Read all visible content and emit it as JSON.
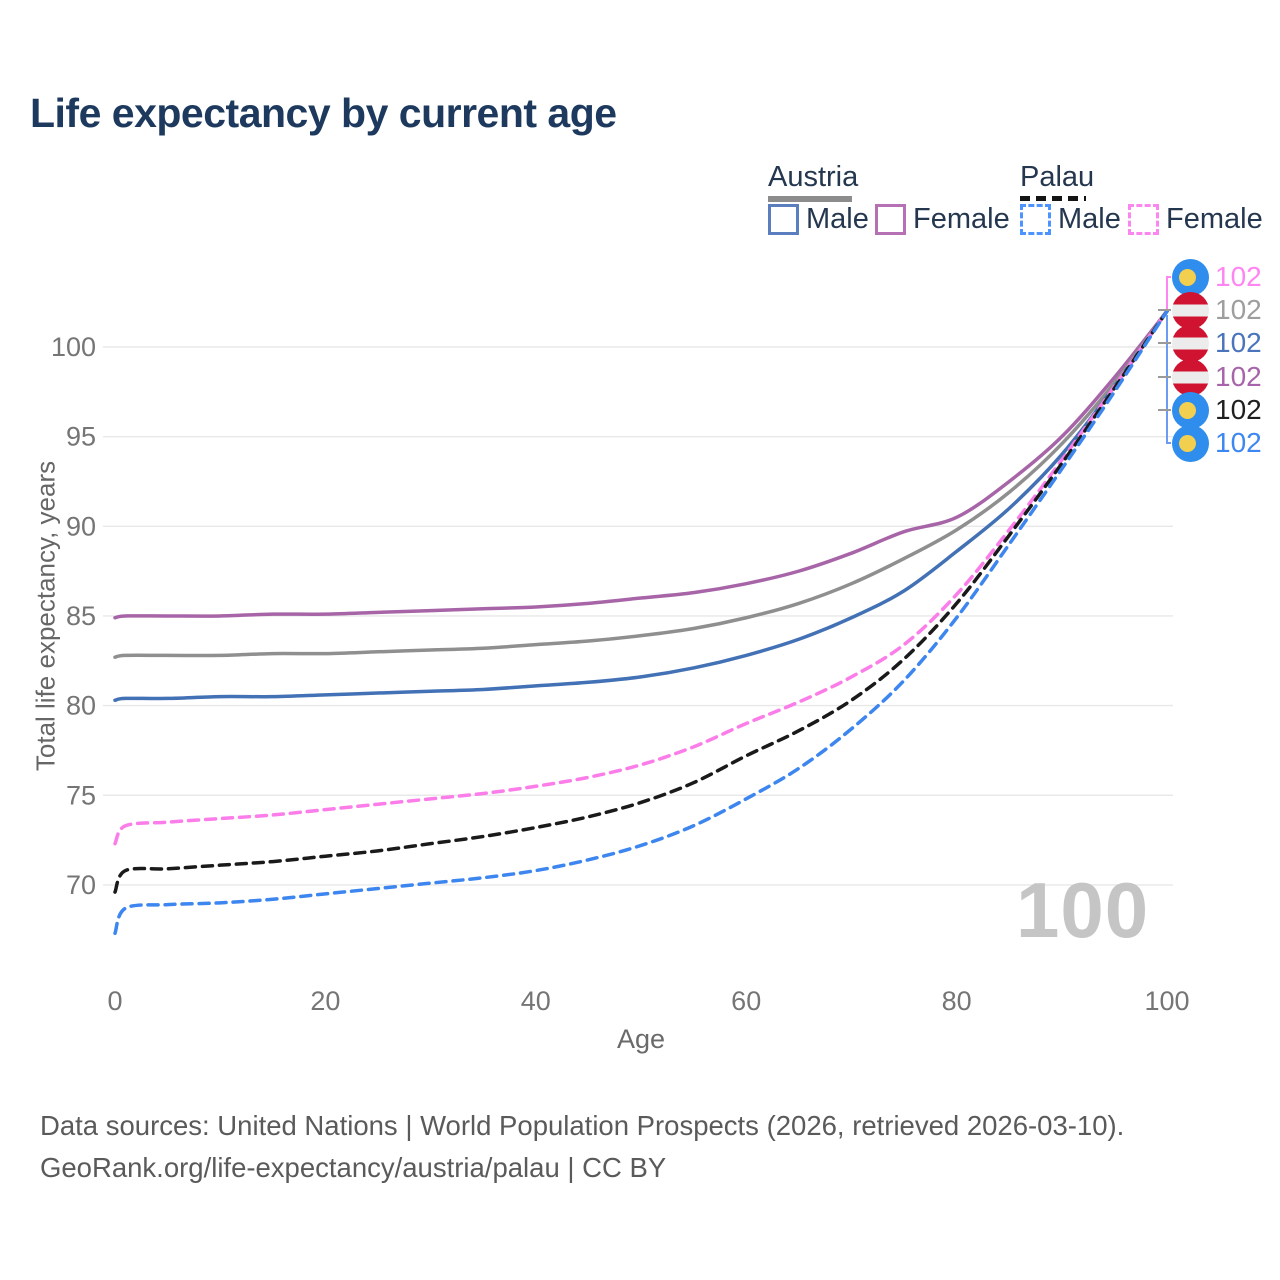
{
  "title": "Life expectancy by current age",
  "legend": {
    "groups": [
      {
        "label": "Austria",
        "line_style": "solid",
        "underline_color": "#8c8c8c",
        "items": [
          {
            "label": "Male",
            "color": "#5b7fbe"
          },
          {
            "label": "Female",
            "color": "#b671b4"
          }
        ]
      },
      {
        "label": "Palau",
        "line_style": "dashed",
        "underline_color": "#141414",
        "items": [
          {
            "label": "Male",
            "color": "#4d94ff"
          },
          {
            "label": "Female",
            "color": "#fc86f0"
          }
        ]
      }
    ]
  },
  "chart_data": {
    "type": "line",
    "title": "Life expectancy by current age",
    "xlabel": "Age",
    "ylabel": "Total life expectancy, years",
    "x_ticks": [
      0,
      20,
      40,
      60,
      80,
      100
    ],
    "y_ticks": [
      70,
      75,
      80,
      85,
      90,
      95,
      100
    ],
    "xlim": [
      0,
      100
    ],
    "ylim": [
      67,
      103
    ],
    "grid": "horizontal",
    "x": [
      0,
      1,
      5,
      10,
      15,
      20,
      25,
      30,
      35,
      40,
      45,
      50,
      55,
      60,
      65,
      70,
      75,
      80,
      85,
      90,
      95,
      100
    ],
    "series": [
      {
        "name": "Austria Female",
        "country": "Austria",
        "sex": "Female",
        "color": "#a765a8",
        "dashed": false,
        "end_value": 102,
        "values": [
          84.9,
          85.0,
          85.0,
          85.0,
          85.1,
          85.1,
          85.2,
          85.3,
          85.4,
          85.5,
          85.7,
          86.0,
          86.3,
          86.8,
          87.5,
          88.5,
          89.7,
          90.5,
          92.5,
          95.0,
          98.3,
          102
        ]
      },
      {
        "name": "Austria Both sexes",
        "country": "Austria",
        "sex": "Both",
        "color": "#8f8f8f",
        "dashed": false,
        "end_value": 102,
        "values": [
          82.7,
          82.8,
          82.8,
          82.8,
          82.9,
          82.9,
          83.0,
          83.1,
          83.2,
          83.4,
          83.6,
          83.9,
          84.3,
          84.9,
          85.7,
          86.8,
          88.2,
          89.8,
          91.9,
          94.6,
          98.0,
          102
        ]
      },
      {
        "name": "Austria Male",
        "country": "Austria",
        "sex": "Male",
        "color": "#4371b5",
        "dashed": false,
        "end_value": 102,
        "values": [
          80.3,
          80.4,
          80.4,
          80.5,
          80.5,
          80.6,
          80.7,
          80.8,
          80.9,
          81.1,
          81.3,
          81.6,
          82.1,
          82.8,
          83.7,
          84.9,
          86.4,
          88.6,
          91.0,
          94.0,
          97.8,
          102
        ]
      },
      {
        "name": "Palau Female",
        "country": "Palau",
        "sex": "Female",
        "color": "#fb7de9",
        "dashed": true,
        "end_value": 102,
        "values": [
          72.3,
          73.3,
          73.5,
          73.7,
          73.9,
          74.2,
          74.5,
          74.8,
          75.1,
          75.5,
          76.0,
          76.7,
          77.7,
          79.0,
          80.2,
          81.6,
          83.4,
          86.2,
          89.8,
          93.7,
          97.8,
          102
        ]
      },
      {
        "name": "Palau Both sexes",
        "country": "Palau",
        "sex": "Both",
        "color": "#1a1a1a",
        "dashed": true,
        "end_value": 102,
        "values": [
          69.6,
          70.8,
          70.9,
          71.1,
          71.3,
          71.6,
          71.9,
          72.3,
          72.7,
          73.2,
          73.8,
          74.6,
          75.7,
          77.2,
          78.6,
          80.3,
          82.6,
          85.7,
          89.5,
          93.5,
          97.7,
          102
        ]
      },
      {
        "name": "Palau Male",
        "country": "Palau",
        "sex": "Male",
        "color": "#3d86ef",
        "dashed": true,
        "end_value": 102,
        "values": [
          67.3,
          68.7,
          68.9,
          69.0,
          69.2,
          69.5,
          69.8,
          70.1,
          70.4,
          70.8,
          71.4,
          72.2,
          73.3,
          74.8,
          76.5,
          78.7,
          81.4,
          84.9,
          89.0,
          93.2,
          97.5,
          102
        ]
      }
    ]
  },
  "end_labels": [
    {
      "value": "102",
      "color": "#ff85f2",
      "flag": "palau",
      "series": "Palau Female"
    },
    {
      "value": "102",
      "color": "#9e9e9e",
      "flag": "austria",
      "series": "Austria Both sexes"
    },
    {
      "value": "102",
      "color": "#4a74bc",
      "flag": "austria",
      "series": "Austria Male"
    },
    {
      "value": "102",
      "color": "#a864aa",
      "flag": "austria",
      "series": "Austria Female"
    },
    {
      "value": "102",
      "color": "#1f1f1f",
      "flag": "palau",
      "series": "Palau Both sexes"
    },
    {
      "value": "102",
      "color": "#3c87f2",
      "flag": "palau",
      "series": "Palau Male"
    }
  ],
  "watermark": "100",
  "footer": {
    "line1": "Data sources: United Nations | World Population Prospects (2026, retrieved 2026-03-10).",
    "line2": "GeoRank.org/life-expectancy/austria/palau | CC BY"
  }
}
